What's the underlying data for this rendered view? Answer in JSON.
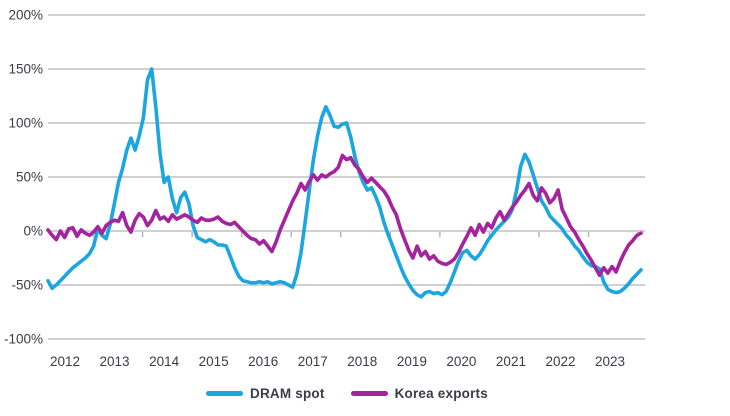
{
  "chart_data": {
    "type": "line",
    "title": "",
    "xlabel": "",
    "ylabel": "",
    "ylim": [
      -100,
      200
    ],
    "grid": "horizontal-only",
    "legend_position": "bottom-center",
    "background": "#ffffff",
    "y_ticks": [
      {
        "label": "200%",
        "value": 200
      },
      {
        "label": "150%",
        "value": 150
      },
      {
        "label": "100%",
        "value": 100
      },
      {
        "label": "50%",
        "value": 50
      },
      {
        "label": "0%",
        "value": 0
      },
      {
        "label": "-50%",
        "value": -50
      },
      {
        "label": "-100%",
        "value": -100
      }
    ],
    "x_tick_labels": [
      "2012",
      "2013",
      "2014",
      "2015",
      "2016",
      "2017",
      "2018",
      "2019",
      "2020",
      "2021",
      "2022",
      "2023"
    ],
    "x_note": "monthly year-over-year % change, points span late 2011 through late 2023",
    "series": [
      {
        "name": "DRAM spot",
        "color": "#1ba6e0",
        "values": [
          -46,
          -53,
          -50,
          -46,
          -42,
          -38,
          -34,
          -31,
          -28,
          -25,
          -21,
          -14,
          2,
          -4,
          -7,
          6,
          25,
          45,
          58,
          75,
          86,
          75,
          88,
          105,
          140,
          150,
          115,
          72,
          45,
          50,
          30,
          17,
          31,
          36,
          25,
          5,
          -6,
          -8,
          -10,
          -8,
          -10,
          -13,
          -13,
          -14,
          -24,
          -34,
          -42,
          -46,
          -47,
          -48,
          -48,
          -47,
          -48,
          -47,
          -49,
          -48,
          -47,
          -48,
          -50,
          -52,
          -40,
          -20,
          8,
          38,
          66,
          88,
          105,
          115,
          107,
          97,
          96,
          99,
          100,
          87,
          69,
          55,
          45,
          38,
          40,
          32,
          22,
          8,
          -3,
          -13,
          -23,
          -33,
          -42,
          -49,
          -55,
          -59,
          -61,
          -57,
          -56,
          -58,
          -57,
          -59,
          -56,
          -48,
          -38,
          -28,
          -20,
          -18,
          -23,
          -26,
          -22,
          -16,
          -9,
          -4,
          1,
          5,
          9,
          13,
          20,
          38,
          60,
          71,
          64,
          52,
          40,
          28,
          22,
          14,
          10,
          6,
          2,
          -4,
          -8,
          -14,
          -18,
          -24,
          -29,
          -32,
          -33,
          -35,
          -47,
          -54,
          -56,
          -57,
          -56,
          -53,
          -49,
          -44,
          -40,
          -36
        ]
      },
      {
        "name": "Korea exports",
        "color": "#a3249e",
        "values": [
          1,
          -4,
          -8,
          0,
          -6,
          2,
          3,
          -5,
          1,
          -2,
          -4,
          -1,
          4,
          -2,
          5,
          8,
          10,
          9,
          17,
          5,
          -1,
          10,
          16,
          13,
          5,
          10,
          19,
          11,
          13,
          9,
          15,
          11,
          13,
          15,
          13,
          10,
          8,
          12,
          10,
          10,
          11,
          13,
          9,
          7,
          6,
          8,
          4,
          0,
          -4,
          -7,
          -8,
          -12,
          -9,
          -14,
          -19,
          -10,
          1,
          10,
          19,
          28,
          35,
          44,
          38,
          46,
          52,
          47,
          52,
          50,
          53,
          55,
          59,
          70,
          66,
          68,
          61,
          57,
          50,
          45,
          49,
          45,
          41,
          37,
          31,
          22,
          15,
          2,
          -8,
          -18,
          -25,
          -14,
          -23,
          -19,
          -26,
          -23,
          -28,
          -30,
          -31,
          -29,
          -26,
          -20,
          -12,
          -5,
          3,
          -4,
          6,
          -1,
          7,
          3,
          12,
          18,
          10,
          16,
          22,
          27,
          33,
          38,
          44,
          33,
          28,
          40,
          35,
          26,
          30,
          38,
          20,
          12,
          4,
          -1,
          -8,
          -14,
          -21,
          -27,
          -34,
          -41,
          -34,
          -39,
          -33,
          -38,
          -28,
          -20,
          -13,
          -9,
          -4,
          -2
        ]
      }
    ]
  },
  "style_colors": {
    "gridline": "#c9cacc",
    "axis_tick": "#b4b5b8",
    "label_text": "#3b3b46"
  }
}
